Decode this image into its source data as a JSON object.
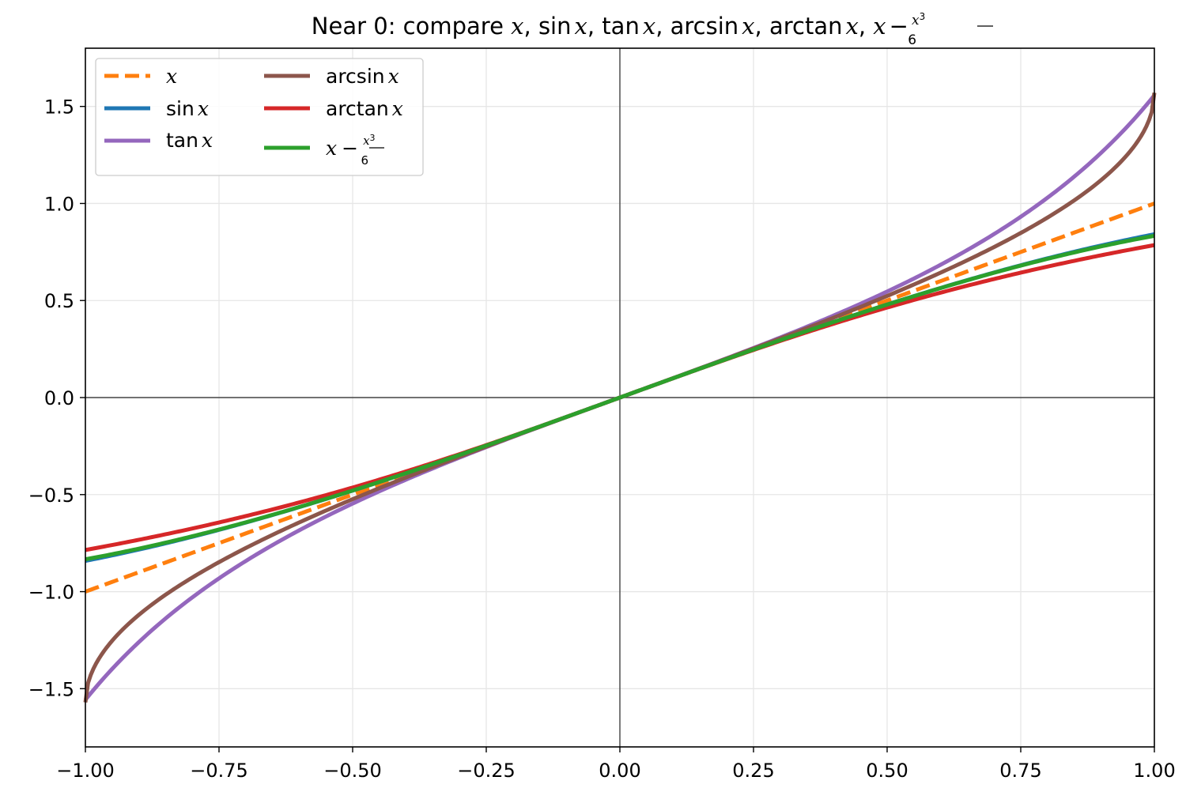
{
  "chart_data": {
    "type": "line",
    "title": {
      "prefix": "Near 0: compare ",
      "parts": [
        "x",
        "sin",
        "x",
        "tan",
        "x",
        "arcsin",
        "x",
        "arctan",
        "x",
        "x",
        "x",
        "3",
        "6"
      ]
    },
    "xlim": [
      -1.0,
      1.0
    ],
    "ylim": [
      -1.8,
      1.8
    ],
    "grid": true,
    "legend_position": "top-left",
    "xticks": [
      -1.0,
      -0.75,
      -0.5,
      -0.25,
      0.0,
      0.25,
      0.5,
      0.75,
      1.0
    ],
    "xtick_labels": [
      "−1.00",
      "−0.75",
      "−0.50",
      "−0.25",
      "0.00",
      "0.25",
      "0.50",
      "0.75",
      "1.00"
    ],
    "yticks": [
      -1.5,
      -1.0,
      -0.5,
      0.0,
      0.5,
      1.0,
      1.5
    ],
    "ytick_labels": [
      "−1.5",
      "−1.0",
      "−0.5",
      "0.0",
      "0.5",
      "1.0",
      "1.5"
    ],
    "x": [
      -1.0,
      -0.99,
      -0.95,
      -0.9,
      -0.8,
      -0.7,
      -0.6,
      -0.5,
      -0.4,
      -0.3,
      -0.2,
      -0.1,
      0.0,
      0.1,
      0.2,
      0.3,
      0.4,
      0.5,
      0.6,
      0.7,
      0.8,
      0.9,
      0.95,
      0.99,
      1.0
    ],
    "series": [
      {
        "name": "x",
        "fn": "x",
        "color": "#ff7f0e",
        "dashed": true,
        "values": [
          -1.0,
          -0.99,
          -0.95,
          -0.9,
          -0.8,
          -0.7,
          -0.6,
          -0.5,
          -0.4,
          -0.3,
          -0.2,
          -0.1,
          0.0,
          0.1,
          0.2,
          0.3,
          0.4,
          0.5,
          0.6,
          0.7,
          0.8,
          0.9,
          0.95,
          0.99,
          1.0
        ]
      },
      {
        "name": "sin x",
        "fn": "sin",
        "color": "#1f77b4",
        "dashed": false,
        "values": [
          -0.8415,
          -0.836,
          -0.8134,
          -0.7833,
          -0.7174,
          -0.6442,
          -0.5646,
          -0.4794,
          -0.3894,
          -0.2955,
          -0.1987,
          -0.0998,
          0.0,
          0.0998,
          0.1987,
          0.2955,
          0.3894,
          0.4794,
          0.5646,
          0.6442,
          0.7174,
          0.7833,
          0.8134,
          0.836,
          0.8415
        ]
      },
      {
        "name": "tan x",
        "fn": "tan",
        "color": "#9467bd",
        "dashed": false,
        "values": [
          -1.5574,
          -1.5237,
          -1.3984,
          -1.2602,
          -1.0296,
          -0.8423,
          -0.6841,
          -0.5463,
          -0.4228,
          -0.3093,
          -0.2027,
          -0.1003,
          0.0,
          0.1003,
          0.2027,
          0.3093,
          0.4228,
          0.5463,
          0.6841,
          0.8423,
          1.0296,
          1.2602,
          1.3984,
          1.5237,
          1.5574
        ]
      },
      {
        "name": "arcsin x",
        "fn": "asin",
        "color": "#8c564b",
        "dashed": false,
        "values": [
          -1.5708,
          -1.4293,
          -1.2532,
          -1.1198,
          -0.9273,
          -0.7754,
          -0.6435,
          -0.5236,
          -0.4115,
          -0.3047,
          -0.2014,
          -0.1002,
          0.0,
          0.1002,
          0.2014,
          0.3047,
          0.4115,
          0.5236,
          0.6435,
          0.7754,
          0.9273,
          1.1198,
          1.2532,
          1.4293,
          1.5708
        ]
      },
      {
        "name": "arctan x",
        "fn": "atan",
        "color": "#d62728",
        "dashed": false,
        "values": [
          -0.7854,
          -0.7804,
          -0.7598,
          -0.7328,
          -0.6747,
          -0.6107,
          -0.5404,
          -0.4636,
          -0.3805,
          -0.2915,
          -0.1974,
          -0.0997,
          0.0,
          0.0997,
          0.1974,
          0.2915,
          0.3805,
          0.4636,
          0.5404,
          0.6107,
          0.6747,
          0.7328,
          0.7598,
          0.7804,
          0.7854
        ]
      },
      {
        "name": "x − x³/6",
        "fn": "cubic",
        "color": "#2ca02c",
        "dashed": false,
        "values": [
          -0.8333,
          -0.8283,
          -0.8071,
          -0.7785,
          -0.7147,
          -0.6428,
          -0.564,
          -0.4792,
          -0.3893,
          -0.2955,
          -0.1987,
          -0.0998,
          0.0,
          0.0998,
          0.1987,
          0.2955,
          0.3893,
          0.4792,
          0.564,
          0.6428,
          0.7147,
          0.7785,
          0.8071,
          0.8283,
          0.8333
        ]
      }
    ],
    "legend": {
      "col1": [
        "x",
        "sin",
        "tan"
      ],
      "col2": [
        "arcsin",
        "arctan",
        "x"
      ],
      "var": "x",
      "minus": "−",
      "power": "3",
      "denominator": "6"
    }
  }
}
